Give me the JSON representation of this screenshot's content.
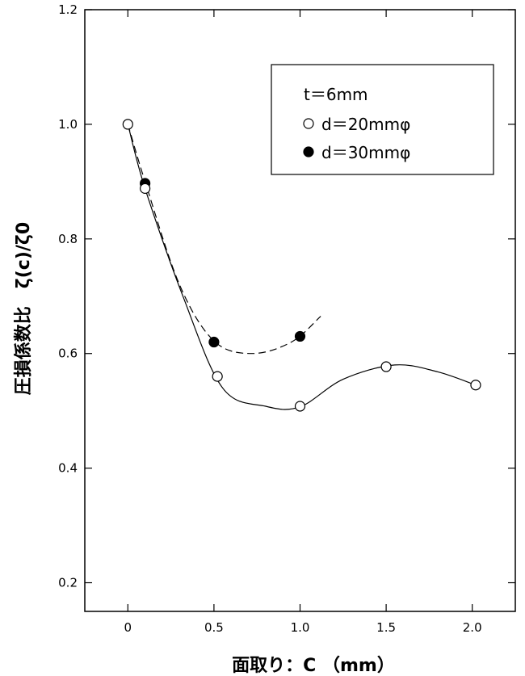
{
  "chart_data": {
    "type": "scatter",
    "title": "",
    "xlabel": "面取り：C （mm）",
    "ylabel": "圧損係数比　ζ(c)/ζ0",
    "xlim": [
      -0.25,
      2.25
    ],
    "ylim": [
      0.15,
      1.2
    ],
    "x_ticks": [
      0,
      0.5,
      1.0,
      1.5,
      2.0
    ],
    "x_tick_labels": [
      "0",
      "0.5",
      "1.0",
      "1.5",
      "2.0"
    ],
    "y_ticks": [
      0.2,
      0.4,
      0.6,
      0.8,
      1.0,
      1.2
    ],
    "y_tick_labels": [
      "0.2",
      "0.4",
      "0.6",
      "0.8",
      "1.0",
      "1.2"
    ],
    "grid": false,
    "legend_position": "top-right",
    "legend_header": "t＝6mm",
    "series": [
      {
        "name": "d＝20mmφ",
        "marker": "open-circle",
        "line": "solid",
        "x": [
          0,
          0.1,
          0.52,
          1.0,
          1.5,
          2.02
        ],
        "y": [
          1.0,
          0.888,
          0.56,
          0.508,
          0.577,
          0.545
        ]
      },
      {
        "name": "d＝30mmφ",
        "marker": "filled-circle",
        "line": "dashed",
        "x": [
          0,
          0.1,
          0.5,
          1.0
        ],
        "y": [
          1.0,
          0.897,
          0.62,
          0.63
        ]
      }
    ]
  }
}
